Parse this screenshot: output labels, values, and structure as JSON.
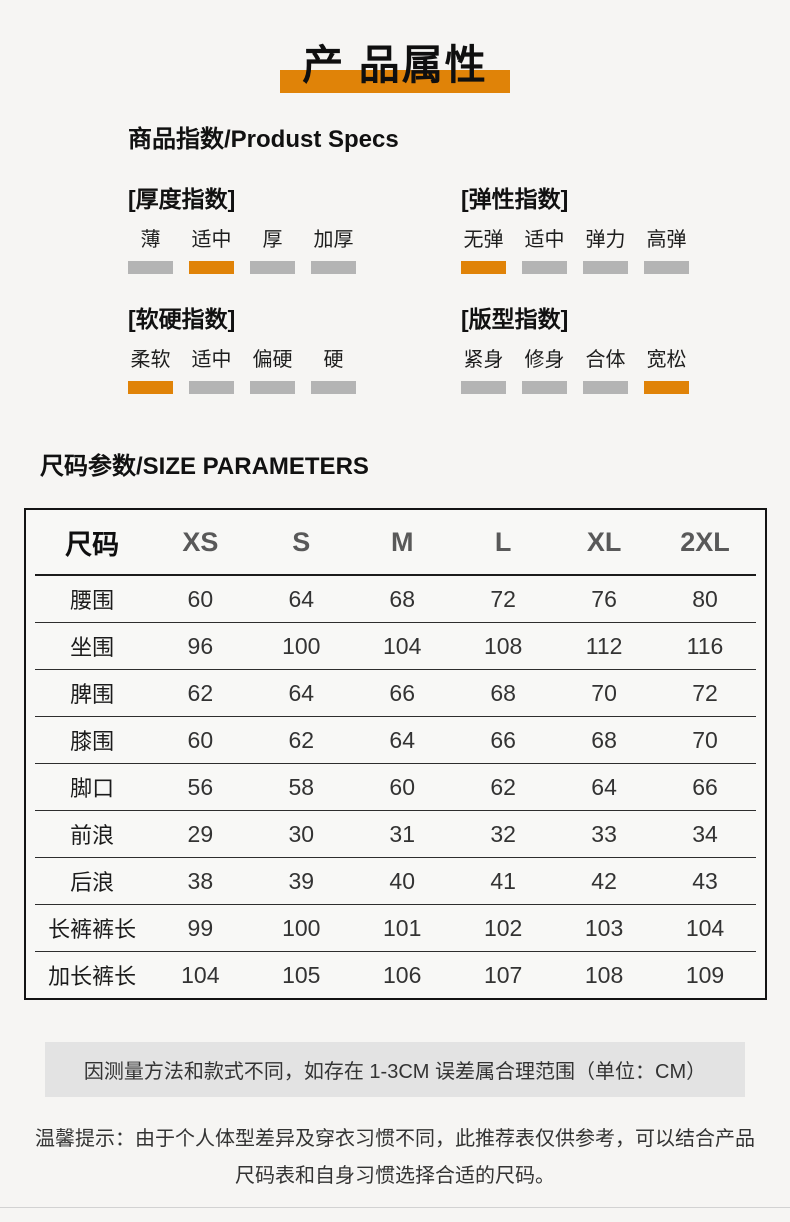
{
  "header": {
    "title": "产 品属性"
  },
  "specs": {
    "heading": "商品指数/Produst Specs",
    "groups": [
      {
        "name": "thickness-index",
        "title": "[厚度指数]",
        "options": [
          {
            "label": "薄",
            "active": false
          },
          {
            "label": "适中",
            "active": true
          },
          {
            "label": "厚",
            "active": false
          },
          {
            "label": "加厚",
            "active": false
          }
        ]
      },
      {
        "name": "elasticity-index",
        "title": "[弹性指数]",
        "options": [
          {
            "label": "无弹",
            "active": true
          },
          {
            "label": "适中",
            "active": false
          },
          {
            "label": "弹力",
            "active": false
          },
          {
            "label": "高弹",
            "active": false
          }
        ]
      },
      {
        "name": "softness-index",
        "title": "[软硬指数]",
        "options": [
          {
            "label": "柔软",
            "active": true
          },
          {
            "label": "适中",
            "active": false
          },
          {
            "label": "偏硬",
            "active": false
          },
          {
            "label": "硬",
            "active": false
          }
        ]
      },
      {
        "name": "fit-index",
        "title": "[版型指数]",
        "options": [
          {
            "label": "紧身",
            "active": false
          },
          {
            "label": "修身",
            "active": false
          },
          {
            "label": "合体",
            "active": false
          },
          {
            "label": "宽松",
            "active": true
          }
        ]
      }
    ]
  },
  "size_table": {
    "heading": "尺码参数/SIZE PARAMETERS",
    "columns": [
      "尺码",
      "XS",
      "S",
      "M",
      "L",
      "XL",
      "2XL"
    ],
    "rows": [
      {
        "label": "腰围",
        "values": [
          "60",
          "64",
          "68",
          "72",
          "76",
          "80"
        ]
      },
      {
        "label": "坐围",
        "values": [
          "96",
          "100",
          "104",
          "108",
          "112",
          "116"
        ]
      },
      {
        "label": "脾围",
        "values": [
          "62",
          "64",
          "66",
          "68",
          "70",
          "72"
        ]
      },
      {
        "label": "膝围",
        "values": [
          "60",
          "62",
          "64",
          "66",
          "68",
          "70"
        ]
      },
      {
        "label": "脚口",
        "values": [
          "56",
          "58",
          "60",
          "62",
          "64",
          "66"
        ]
      },
      {
        "label": "前浪",
        "values": [
          "29",
          "30",
          "31",
          "32",
          "33",
          "34"
        ]
      },
      {
        "label": "后浪",
        "values": [
          "38",
          "39",
          "40",
          "41",
          "42",
          "43"
        ]
      },
      {
        "label": "长裤裤长",
        "values": [
          "99",
          "100",
          "101",
          "102",
          "103",
          "104"
        ]
      },
      {
        "label": "加长裤长",
        "values": [
          "104",
          "105",
          "106",
          "107",
          "108",
          "109"
        ]
      }
    ]
  },
  "notes": {
    "measurement_note": "因测量方法和款式不同，如存在 1-3CM 误差属合理范围（单位：CM）",
    "tip_lines": [
      "温馨提示：由于个人体型差异及穿衣习惯不同，此推荐表仅供参考，可以结合产品",
      "尺码表和自身习惯选择合适的尺码。"
    ]
  },
  "colors": {
    "accent_orange": "#E08308",
    "inactive_gray": "#B4B4B4",
    "note_box_gray": "#E3E3E3"
  }
}
